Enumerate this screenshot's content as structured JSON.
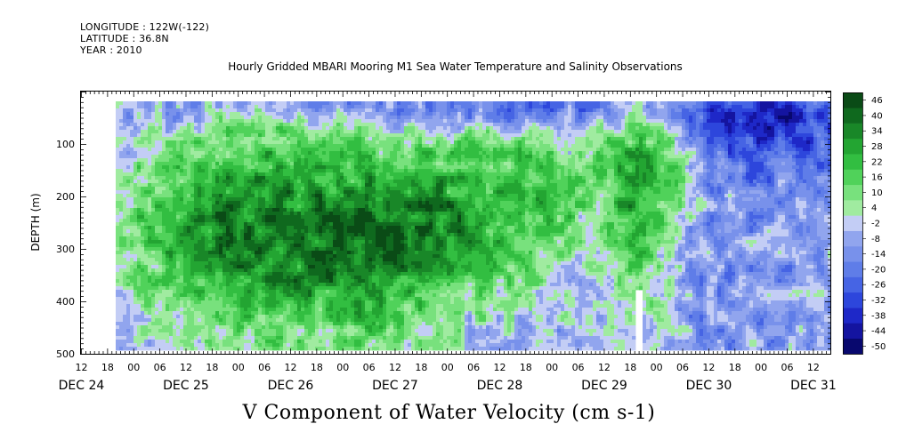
{
  "header": {
    "longitude": "LONGITUDE : 122W(-122)",
    "latitude": "LATITUDE : 36.8N",
    "year": "YEAR : 2010"
  },
  "chart_data": {
    "type": "heatmap",
    "title": "Hourly Gridded MBARI Mooring M1 Sea Water Temperature and Salinity Observations",
    "xlabel": "V Component of Water Velocity (cm s-1)",
    "ylabel": "DEPTH (m)",
    "y_inverted": true,
    "ylim": [
      500,
      0
    ],
    "y_ticks": [
      100,
      200,
      300,
      400,
      500
    ],
    "x_hour_ticks": [
      {
        "day": 0,
        "hour": 12,
        "label": "12"
      },
      {
        "day": 0,
        "hour": 18,
        "label": "18"
      },
      {
        "day": 1,
        "hour": 0,
        "label": "00"
      },
      {
        "day": 1,
        "hour": 6,
        "label": "06"
      },
      {
        "day": 1,
        "hour": 12,
        "label": "12"
      },
      {
        "day": 1,
        "hour": 18,
        "label": "18"
      },
      {
        "day": 2,
        "hour": 0,
        "label": "00"
      },
      {
        "day": 2,
        "hour": 6,
        "label": "06"
      },
      {
        "day": 2,
        "hour": 12,
        "label": "12"
      },
      {
        "day": 2,
        "hour": 18,
        "label": "18"
      },
      {
        "day": 3,
        "hour": 0,
        "label": "00"
      },
      {
        "day": 3,
        "hour": 6,
        "label": "06"
      },
      {
        "day": 3,
        "hour": 12,
        "label": "12"
      },
      {
        "day": 3,
        "hour": 18,
        "label": "18"
      },
      {
        "day": 4,
        "hour": 0,
        "label": "00"
      },
      {
        "day": 4,
        "hour": 6,
        "label": "06"
      },
      {
        "day": 4,
        "hour": 12,
        "label": "12"
      },
      {
        "day": 4,
        "hour": 18,
        "label": "18"
      },
      {
        "day": 5,
        "hour": 0,
        "label": "00"
      },
      {
        "day": 5,
        "hour": 6,
        "label": "06"
      },
      {
        "day": 5,
        "hour": 12,
        "label": "12"
      },
      {
        "day": 5,
        "hour": 18,
        "label": "18"
      },
      {
        "day": 6,
        "hour": 0,
        "label": "00"
      },
      {
        "day": 6,
        "hour": 6,
        "label": "06"
      },
      {
        "day": 6,
        "hour": 12,
        "label": "12"
      },
      {
        "day": 6,
        "hour": 18,
        "label": "18"
      },
      {
        "day": 7,
        "hour": 0,
        "label": "00"
      },
      {
        "day": 7,
        "hour": 6,
        "label": "06"
      },
      {
        "day": 7,
        "hour": 12,
        "label": "12"
      }
    ],
    "day_labels": [
      {
        "day": 0,
        "hour": 12,
        "label": "DEC 24"
      },
      {
        "day": 1,
        "hour": 12,
        "label": "DEC 25"
      },
      {
        "day": 2,
        "hour": 12,
        "label": "DEC 26"
      },
      {
        "day": 3,
        "hour": 12,
        "label": "DEC 27"
      },
      {
        "day": 4,
        "hour": 12,
        "label": "DEC 28"
      },
      {
        "day": 5,
        "hour": 12,
        "label": "DEC 29"
      },
      {
        "day": 6,
        "hour": 12,
        "label": "DEC 30"
      },
      {
        "day": 7,
        "hour": 12,
        "label": "DEC 31"
      }
    ],
    "x_domain_hours": [
      12,
      184
    ],
    "data_start_hour": 20,
    "depth_range_m": [
      20,
      488
    ],
    "colorbar": {
      "min": -50,
      "max": 50,
      "labels": [
        "46",
        "40",
        "34",
        "28",
        "22",
        "16",
        "10",
        "4",
        "-2",
        "-8",
        "-14",
        "-20",
        "-26",
        "-32",
        "-38",
        "-44",
        "-50"
      ]
    }
  }
}
